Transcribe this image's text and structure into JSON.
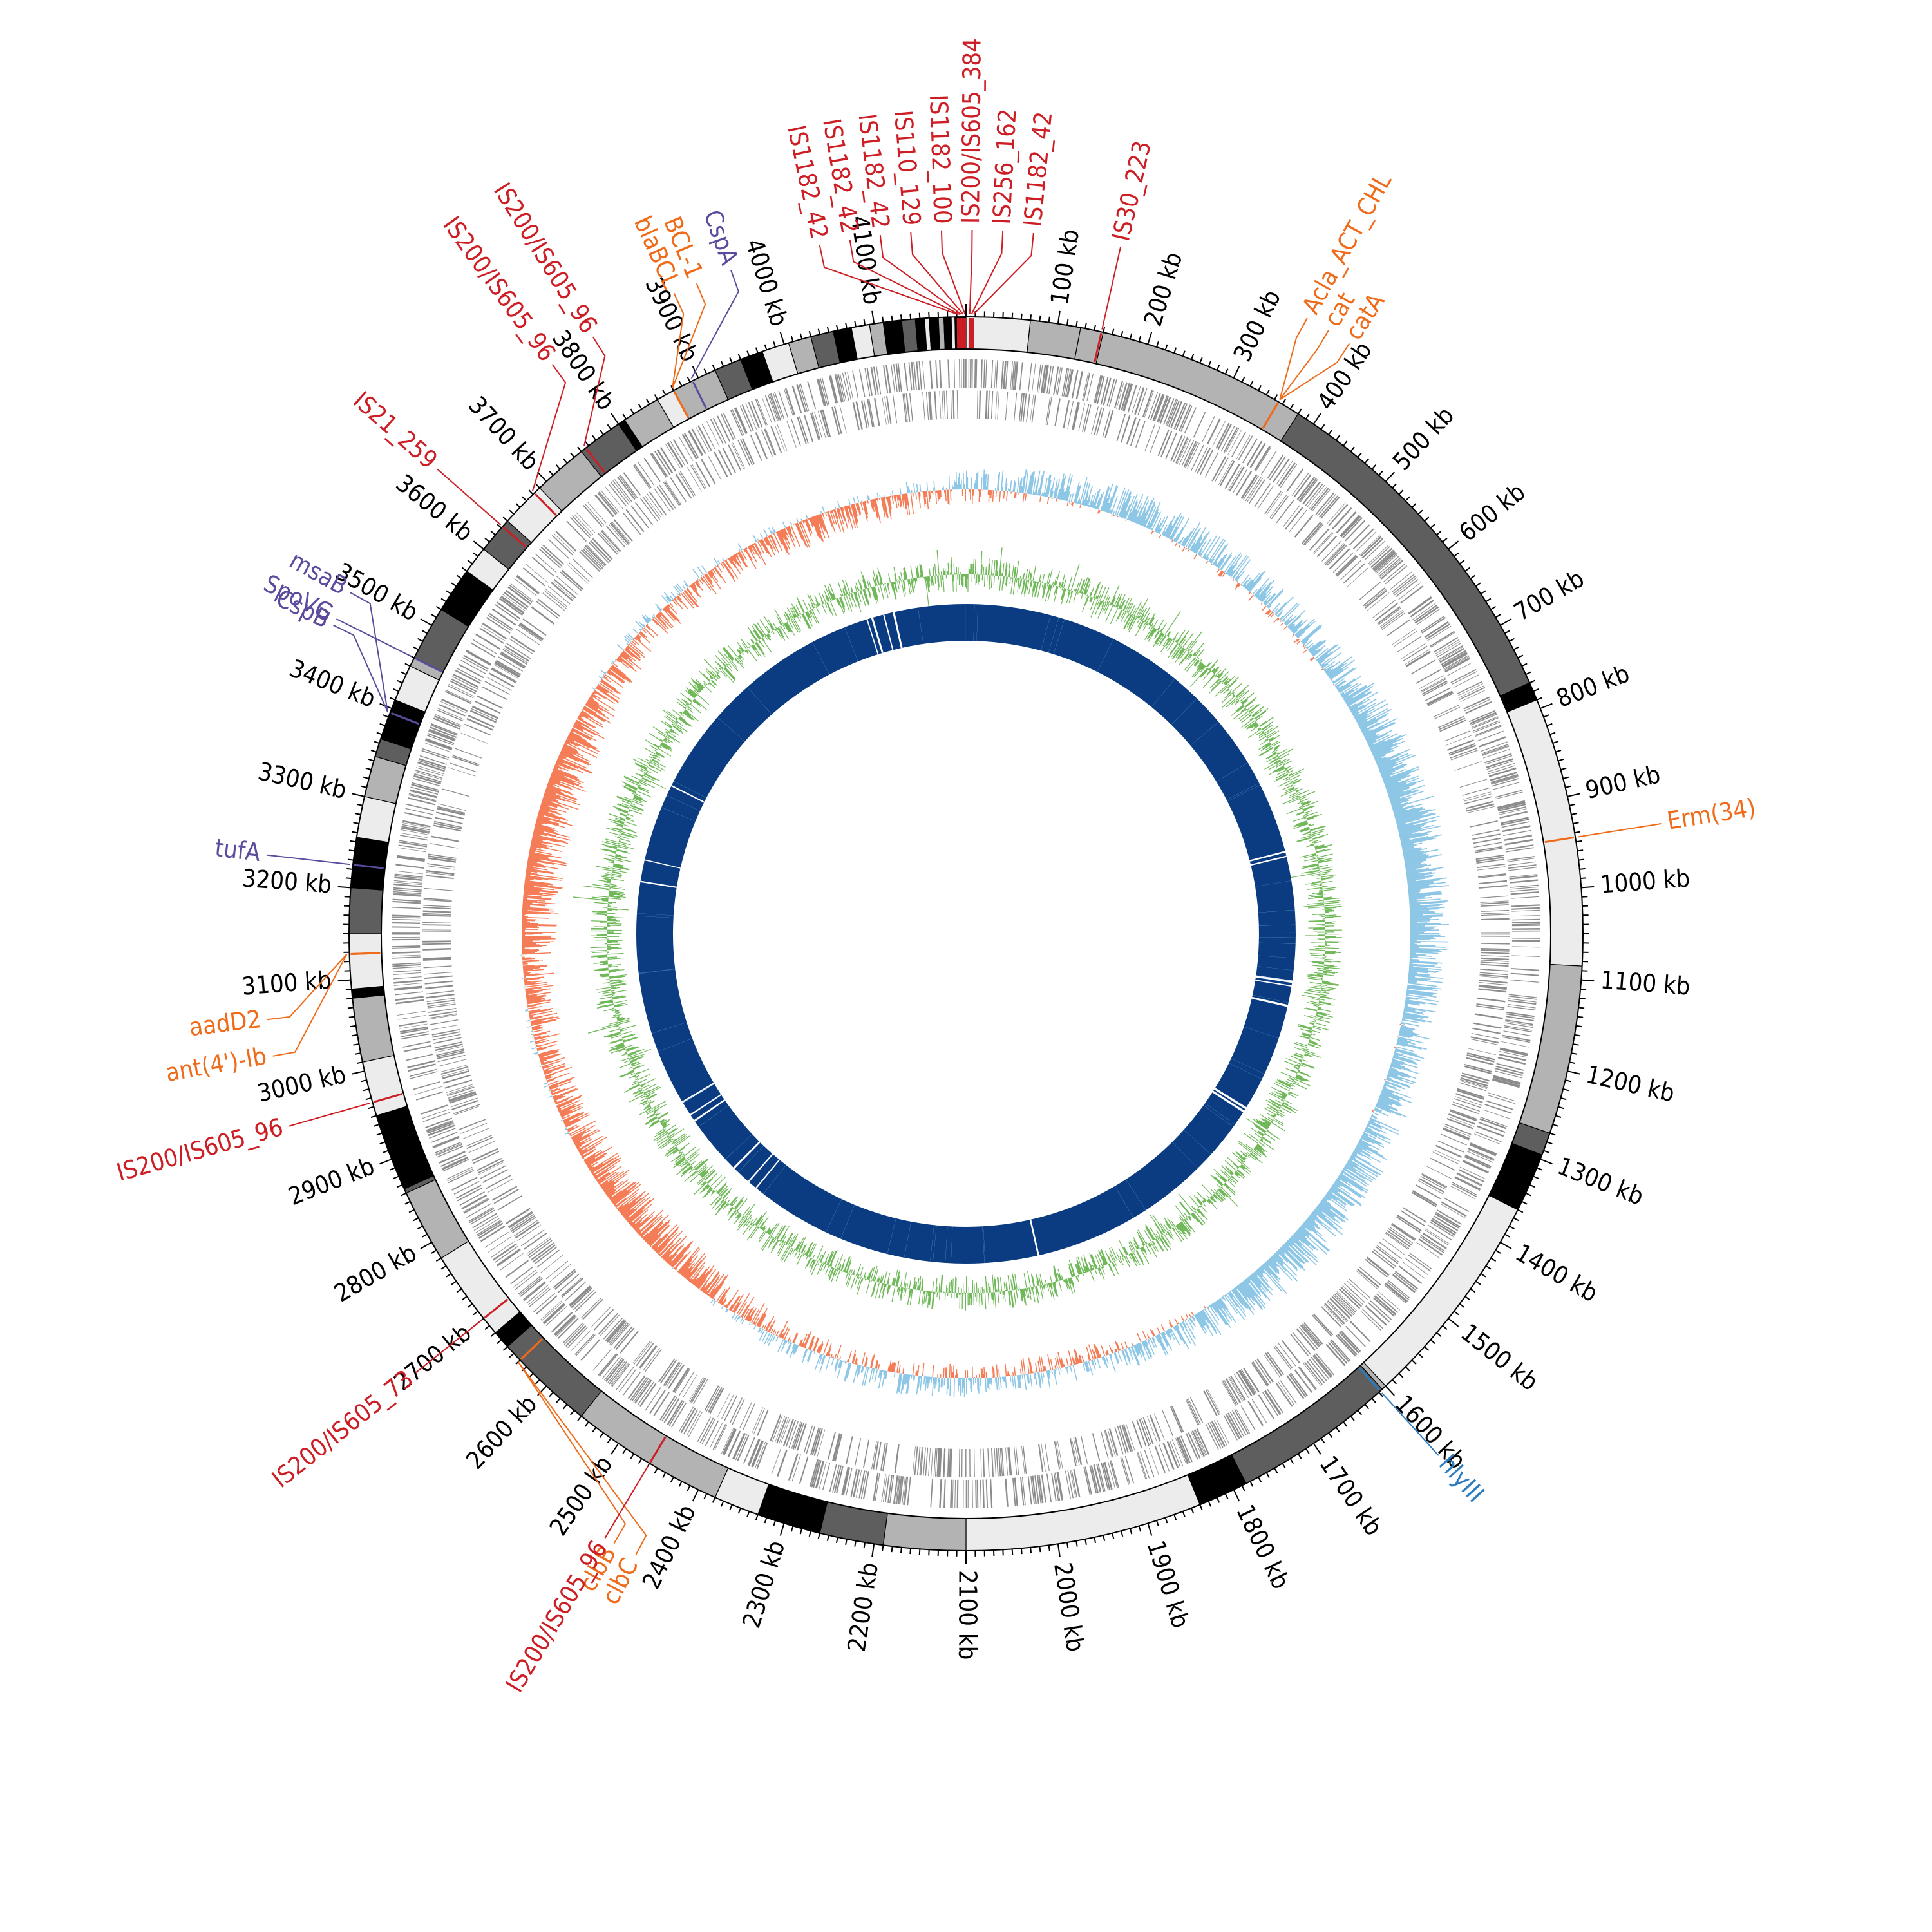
{
  "genome": {
    "length_kb": 4200,
    "tick_labels": [
      "100 kb",
      "200 kb",
      "300 kb",
      "400 kb",
      "500 kb",
      "600 kb",
      "700 kb",
      "800 kb",
      "900 kb",
      "1000 kb",
      "1100 kb",
      "1200 kb",
      "1300 kb",
      "1400 kb",
      "1500 kb",
      "1600 kb",
      "1700 kb",
      "1800 kb",
      "1900 kb",
      "2000 kb",
      "2100 kb",
      "2200 kb",
      "2300 kb",
      "2400 kb",
      "2500 kb",
      "2600 kb",
      "2700 kb",
      "2800 kb",
      "2900 kb",
      "3000 kb",
      "3100 kb",
      "3200 kb",
      "3300 kb",
      "3400 kb",
      "3500 kb",
      "3600 kb",
      "3700 kb",
      "3800 kb",
      "3900 kb",
      "4000 kb",
      "4100 kb"
    ]
  },
  "contigs": [
    {
      "start": 0,
      "end": 70,
      "shade": "#ececec"
    },
    {
      "start": 70,
      "end": 125,
      "shade": "#b3b3b3"
    },
    {
      "start": 125,
      "end": 150,
      "shade": "#b3b3b3"
    },
    {
      "start": 150,
      "end": 380,
      "shade": "#b3b3b3"
    },
    {
      "start": 380,
      "end": 770,
      "shade": "#5e5e5e"
    },
    {
      "start": 770,
      "end": 790,
      "shade": "#000000"
    },
    {
      "start": 790,
      "end": 1085,
      "shade": "#ececec"
    },
    {
      "start": 1085,
      "end": 1270,
      "shade": "#b3b3b3"
    },
    {
      "start": 1270,
      "end": 1295,
      "shade": "#5e5e5e"
    },
    {
      "start": 1295,
      "end": 1360,
      "shade": "#000000"
    },
    {
      "start": 1360,
      "end": 1600,
      "shade": "#ececec"
    },
    {
      "start": 1600,
      "end": 1605,
      "shade": "#b3b3b3"
    },
    {
      "start": 1605,
      "end": 1785,
      "shade": "#5e5e5e"
    },
    {
      "start": 1785,
      "end": 1840,
      "shade": "#000000"
    },
    {
      "start": 1840,
      "end": 2100,
      "shade": "#ececec"
    },
    {
      "start": 2100,
      "end": 2190,
      "shade": "#b3b3b3"
    },
    {
      "start": 2190,
      "end": 2260,
      "shade": "#5e5e5e"
    },
    {
      "start": 2260,
      "end": 2330,
      "shade": "#000000"
    },
    {
      "start": 2330,
      "end": 2380,
      "shade": "#ececec"
    },
    {
      "start": 2380,
      "end": 2550,
      "shade": "#b3b3b3"
    },
    {
      "start": 2550,
      "end": 2660,
      "shade": "#5e5e5e"
    },
    {
      "start": 2660,
      "end": 2680,
      "shade": "#000000"
    },
    {
      "start": 2680,
      "end": 2780,
      "shade": "#ececec"
    },
    {
      "start": 2780,
      "end": 2860,
      "shade": "#b3b3b3"
    },
    {
      "start": 2860,
      "end": 2865,
      "shade": "#5e5e5e"
    },
    {
      "start": 2865,
      "end": 2950,
      "shade": "#000000"
    },
    {
      "start": 2950,
      "end": 3010,
      "shade": "#ececec"
    },
    {
      "start": 3010,
      "end": 3080,
      "shade": "#b3b3b3"
    },
    {
      "start": 3080,
      "end": 3090,
      "shade": "#000000"
    },
    {
      "start": 3090,
      "end": 3150,
      "shade": "#ececec"
    },
    {
      "start": 3150,
      "end": 3200,
      "shade": "#5e5e5e"
    },
    {
      "start": 3200,
      "end": 3255,
      "shade": "#000000"
    },
    {
      "start": 3255,
      "end": 3300,
      "shade": "#ececec"
    },
    {
      "start": 3300,
      "end": 3345,
      "shade": "#b3b3b3"
    },
    {
      "start": 3345,
      "end": 3365,
      "shade": "#5e5e5e"
    },
    {
      "start": 3365,
      "end": 3410,
      "shade": "#000000"
    },
    {
      "start": 3410,
      "end": 3450,
      "shade": "#ececec"
    },
    {
      "start": 3450,
      "end": 3460,
      "shade": "#b3b3b3"
    },
    {
      "start": 3460,
      "end": 3520,
      "shade": "#5e5e5e"
    },
    {
      "start": 3520,
      "end": 3570,
      "shade": "#000000"
    },
    {
      "start": 3570,
      "end": 3600,
      "shade": "#ececec"
    },
    {
      "start": 3600,
      "end": 3640,
      "shade": "#5e5e5e"
    },
    {
      "start": 3640,
      "end": 3690,
      "shade": "#ececec"
    },
    {
      "start": 3690,
      "end": 3750,
      "shade": "#b3b3b3"
    },
    {
      "start": 3750,
      "end": 3800,
      "shade": "#5e5e5e"
    },
    {
      "start": 3800,
      "end": 3808,
      "shade": "#000000"
    },
    {
      "start": 3808,
      "end": 3850,
      "shade": "#b3b3b3"
    },
    {
      "start": 3850,
      "end": 3870,
      "shade": "#ececec"
    },
    {
      "start": 3870,
      "end": 3920,
      "shade": "#b3b3b3"
    },
    {
      "start": 3920,
      "end": 3950,
      "shade": "#5e5e5e"
    },
    {
      "start": 3950,
      "end": 3975,
      "shade": "#000000"
    },
    {
      "start": 3975,
      "end": 4005,
      "shade": "#ececec"
    },
    {
      "start": 4005,
      "end": 4030,
      "shade": "#b3b3b3"
    },
    {
      "start": 4030,
      "end": 4055,
      "shade": "#5e5e5e"
    },
    {
      "start": 4055,
      "end": 4075,
      "shade": "#000000"
    },
    {
      "start": 4075,
      "end": 4095,
      "shade": "#ececec"
    },
    {
      "start": 4095,
      "end": 4110,
      "shade": "#b3b3b3"
    },
    {
      "start": 4110,
      "end": 4130,
      "shade": "#000000"
    },
    {
      "start": 4130,
      "end": 4145,
      "shade": "#5e5e5e"
    },
    {
      "start": 4145,
      "end": 4155,
      "shade": "#000000"
    },
    {
      "start": 4155,
      "end": 4160,
      "shade": "#ececec"
    },
    {
      "start": 4160,
      "end": 4170,
      "shade": "#000000"
    },
    {
      "start": 4170,
      "end": 4176,
      "shade": "#b3b3b3"
    },
    {
      "start": 4176,
      "end": 4184,
      "shade": "#000000"
    },
    {
      "start": 4184,
      "end": 4188,
      "shade": "#ececec"
    },
    {
      "start": 4188,
      "end": 4200,
      "shade": "#000000"
    }
  ],
  "annotations": [
    {
      "text": "IS1182_42",
      "pos": 4191,
      "category": "insertion",
      "angle": -12
    },
    {
      "text": "IS1182_42",
      "pos": 4193,
      "category": "insertion",
      "angle": -9.5
    },
    {
      "text": "IS1182_42",
      "pos": 4195,
      "category": "insertion",
      "angle": -7
    },
    {
      "text": "IS110_129",
      "pos": 4197,
      "category": "insertion",
      "angle": -4.5
    },
    {
      "text": "IS1182_100",
      "pos": 4199,
      "category": "insertion",
      "angle": -2
    },
    {
      "text": "IS200/IS605_384",
      "pos": 4,
      "category": "insertion",
      "angle": 0.5
    },
    {
      "text": "IS256_162",
      "pos": 6,
      "category": "insertion",
      "angle": 3
    },
    {
      "text": "IS1182_42",
      "pos": 8,
      "category": "insertion",
      "angle": 5.5
    },
    {
      "text": "IS30_223",
      "pos": 148,
      "category": "insertion"
    },
    {
      "text": "Acla_ACT_CHL",
      "pos": 355,
      "category": "resistance",
      "angle": 29
    },
    {
      "text": "cat",
      "pos": 355,
      "category": "resistance",
      "angle": 31
    },
    {
      "text": "catA",
      "pos": 355,
      "category": "resistance",
      "angle": 33
    },
    {
      "text": "Erm(34)",
      "pos": 945,
      "category": "resistance"
    },
    {
      "text": "hlyIII",
      "pos": 1608,
      "category": "virulence"
    },
    {
      "text": "clbB",
      "pos": 2640,
      "category": "resistance",
      "angle": -150
    },
    {
      "text": "clbC",
      "pos": 2640,
      "category": "resistance",
      "angle": -152
    },
    {
      "text": "IS200/IS605_73",
      "pos": 2700,
      "category": "insertion"
    },
    {
      "text": "IS200/IS605_96",
      "pos": 2460,
      "category": "insertion"
    },
    {
      "text": "IS200/IS605_96",
      "pos": 2965,
      "category": "insertion"
    },
    {
      "text": "ant(4')-Ib",
      "pos": 3128,
      "category": "resistance",
      "angle": -100
    },
    {
      "text": "aadD2",
      "pos": 3128,
      "category": "resistance",
      "angle": -97
    },
    {
      "text": "tufA",
      "pos": 3225,
      "category": "stress"
    },
    {
      "text": "CspB",
      "pos": 3395,
      "category": "stress",
      "angle": -64
    },
    {
      "text": "msaB",
      "pos": 3395,
      "category": "stress",
      "angle": -61
    },
    {
      "text": "SpoVG",
      "pos": 3460,
      "category": "stress"
    },
    {
      "text": "IS21_259",
      "pos": 3632,
      "category": "insertion"
    },
    {
      "text": "IS200/IS605_96",
      "pos": 3682,
      "category": "insertion",
      "angle": -36
    },
    {
      "text": "IS200/IS605_96",
      "pos": 3756,
      "category": "insertion",
      "angle": -32
    },
    {
      "text": "blaBCL",
      "pos": 3870,
      "category": "resistance",
      "angle": -24.5
    },
    {
      "text": "BCL-1",
      "pos": 3870,
      "category": "resistance",
      "angle": -22.5
    },
    {
      "text": "CspA",
      "pos": 3893,
      "category": "stress",
      "angle": -19.5
    }
  ],
  "colors": {
    "insertion": "#cc1e24",
    "resistance": "#ef6b1a",
    "virulence": "#2b7bbf",
    "stress": "#5c4a9c",
    "cds_track": "#8c8c8c",
    "gc_skew_positive": "#8ec7e6",
    "gc_skew_negative": "#f47c56",
    "gc_content": "#70b85a",
    "blast_ring": "#0b3b80"
  }
}
